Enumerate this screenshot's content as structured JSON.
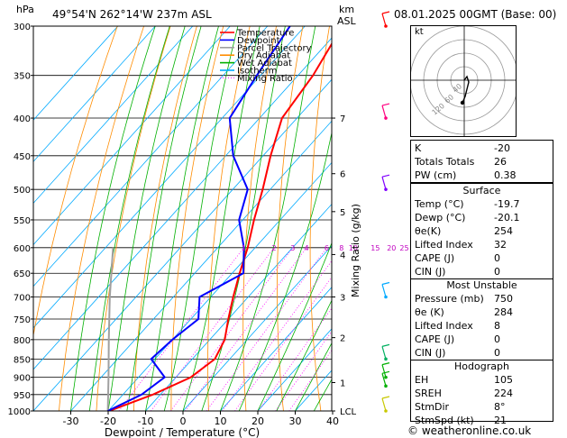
{
  "header": {
    "hpa_label": "hPa",
    "location": "49°54'N  262°14'W  237m  ASL",
    "km_label": "km",
    "asl_label": "ASL",
    "datetime": "08.01.2025  00GMT  (Base: 00)"
  },
  "legend": [
    {
      "label": "Temperature",
      "color": "#ff0000",
      "style": "solid"
    },
    {
      "label": "Dewpoint",
      "color": "#0000ff",
      "style": "solid"
    },
    {
      "label": "Parcel Trajectory",
      "color": "#a0a0a0",
      "style": "solid"
    },
    {
      "label": "Dry Adiabat",
      "color": "#ff8c00",
      "style": "solid"
    },
    {
      "label": "Wet Adiabat",
      "color": "#00b000",
      "style": "solid"
    },
    {
      "label": "Isotherm",
      "color": "#00aaff",
      "style": "solid"
    },
    {
      "label": "Mixing Ratio",
      "color": "#ff00ff",
      "style": "dotted"
    }
  ],
  "axes": {
    "xlabel": "Dewpoint / Temperature (°C)",
    "x_ticks": [
      "-30",
      "-20",
      "-10",
      "0",
      "10",
      "20",
      "30",
      "40"
    ],
    "pressure_ticks": [
      "300",
      "350",
      "400",
      "450",
      "500",
      "550",
      "600",
      "650",
      "700",
      "750",
      "800",
      "850",
      "900",
      "950",
      "1000"
    ],
    "km_ticks": [
      "7",
      "6",
      "5",
      "4",
      "3",
      "2",
      "1",
      "LCL"
    ],
    "mixing_ratio_label": "Mixing Ratio (g/kg)",
    "mixing_ratio_ticks": [
      "1",
      "2",
      "3",
      "4",
      "6",
      "8",
      "10",
      "15",
      "20",
      "25"
    ]
  },
  "hodograph": {
    "unit_label": "kt",
    "ring_labels": [
      "40",
      "60",
      "120"
    ]
  },
  "indices": [
    {
      "key": "K",
      "value": "-20"
    },
    {
      "key": "Totals Totals",
      "value": "26"
    },
    {
      "key": "PW (cm)",
      "value": "0.38"
    }
  ],
  "surface": {
    "title": "Surface",
    "rows": [
      {
        "key": "Temp (°C)",
        "value": "-19.7"
      },
      {
        "key": "Dewp (°C)",
        "value": "-20.1"
      },
      {
        "key": "θe(K)",
        "value": "254"
      },
      {
        "key": "Lifted Index",
        "value": "32"
      },
      {
        "key": "CAPE (J)",
        "value": "0"
      },
      {
        "key": "CIN (J)",
        "value": "0"
      }
    ]
  },
  "most_unstable": {
    "title": "Most Unstable",
    "rows": [
      {
        "key": "Pressure (mb)",
        "value": "750"
      },
      {
        "key": "θe (K)",
        "value": "284"
      },
      {
        "key": "Lifted Index",
        "value": "8"
      },
      {
        "key": "CAPE (J)",
        "value": "0"
      },
      {
        "key": "CIN (J)",
        "value": "0"
      }
    ]
  },
  "hodograph_table": {
    "title": "Hodograph",
    "rows": [
      {
        "key": "EH",
        "value": "105"
      },
      {
        "key": "SREH",
        "value": "224"
      },
      {
        "key": "StmDir",
        "value": "8°"
      },
      {
        "key": "StmSpd (kt)",
        "value": "21"
      }
    ]
  },
  "footer": "© weatheronline.co.uk",
  "chart_data": {
    "type": "skew-t",
    "pressure_range_hpa": [
      1000,
      300
    ],
    "temperature_range_c": [
      -35,
      40
    ],
    "temperature_profile": [
      {
        "p": 1000,
        "t": -19.7
      },
      {
        "p": 950,
        "t": -12
      },
      {
        "p": 900,
        "t": -6
      },
      {
        "p": 850,
        "t": -4
      },
      {
        "p": 800,
        "t": -6
      },
      {
        "p": 750,
        "t": -10
      },
      {
        "p": 700,
        "t": -14
      },
      {
        "p": 650,
        "t": -18
      },
      {
        "p": 600,
        "t": -22
      },
      {
        "p": 550,
        "t": -27
      },
      {
        "p": 500,
        "t": -32
      },
      {
        "p": 450,
        "t": -38
      },
      {
        "p": 400,
        "t": -44
      },
      {
        "p": 350,
        "t": -46
      },
      {
        "p": 300,
        "t": -50
      }
    ],
    "dewpoint_profile": [
      {
        "p": 1000,
        "t": -20.1
      },
      {
        "p": 950,
        "t": -15
      },
      {
        "p": 900,
        "t": -13
      },
      {
        "p": 850,
        "t": -21
      },
      {
        "p": 800,
        "t": -20
      },
      {
        "p": 750,
        "t": -18
      },
      {
        "p": 700,
        "t": -23
      },
      {
        "p": 650,
        "t": -17
      },
      {
        "p": 600,
        "t": -23
      },
      {
        "p": 550,
        "t": -31
      },
      {
        "p": 500,
        "t": -36
      },
      {
        "p": 450,
        "t": -48
      },
      {
        "p": 400,
        "t": -58
      },
      {
        "p": 350,
        "t": -61
      },
      {
        "p": 300,
        "t": -64
      }
    ],
    "parcel_profile": [
      {
        "p": 1000,
        "t": -20.1
      },
      {
        "p": 900,
        "t": -28
      },
      {
        "p": 800,
        "t": -37
      },
      {
        "p": 700,
        "t": -47
      },
      {
        "p": 600,
        "t": -58
      }
    ],
    "wind_barbs": [
      {
        "p": 300,
        "color": "#ff0000"
      },
      {
        "p": 400,
        "color": "#ff0080"
      },
      {
        "p": 500,
        "color": "#8000ff"
      },
      {
        "p": 700,
        "color": "#00aaff"
      },
      {
        "p": 850,
        "color": "#00b060"
      },
      {
        "p": 900,
        "color": "#00b000"
      },
      {
        "p": 925,
        "color": "#00b000"
      },
      {
        "p": 1000,
        "color": "#c8c800"
      }
    ]
  }
}
